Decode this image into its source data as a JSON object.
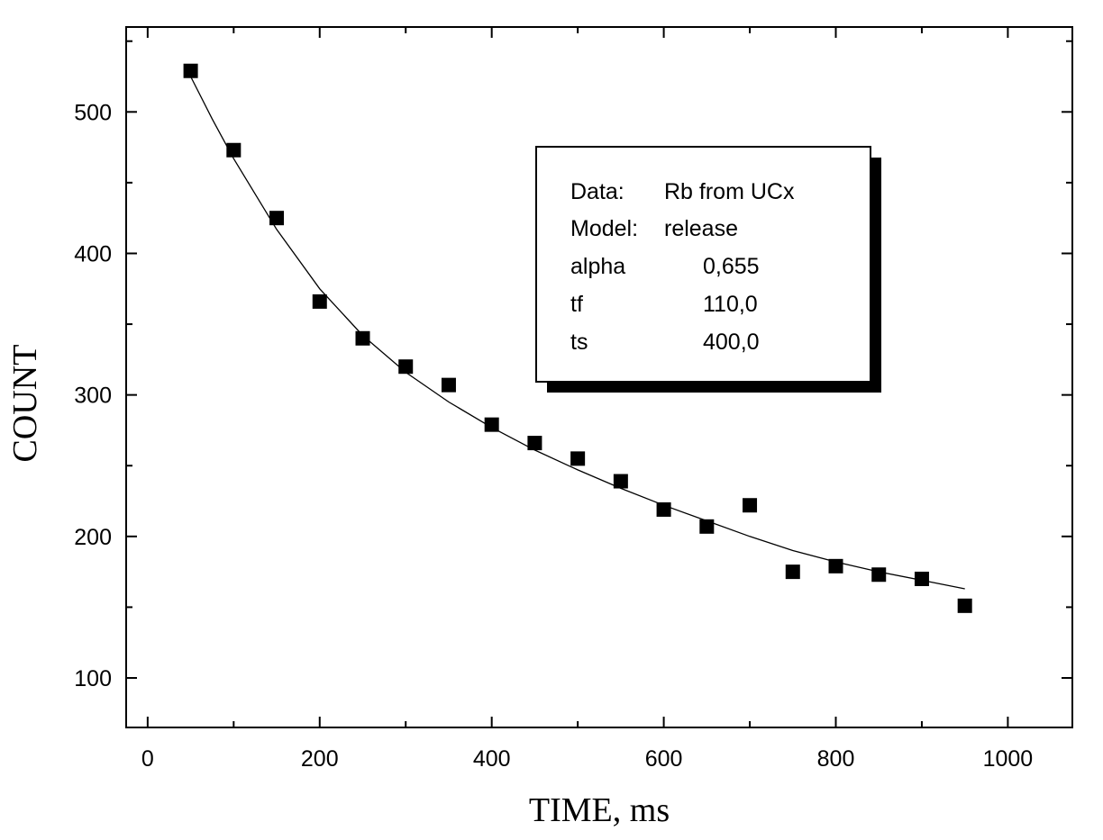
{
  "chart_data": {
    "type": "scatter",
    "xlabel": "TIME, ms",
    "ylabel": "COUNT",
    "xlim": [
      -25,
      1075
    ],
    "ylim": [
      65,
      560
    ],
    "x_ticks": [
      0,
      200,
      400,
      600,
      800,
      1000
    ],
    "y_ticks": [
      100,
      200,
      300,
      400,
      500
    ],
    "grid": false,
    "series": [
      {
        "type": "scatter",
        "marker": "square",
        "color": "#000000",
        "x": [
          50,
          100,
          150,
          200,
          250,
          300,
          350,
          400,
          450,
          500,
          550,
          600,
          650,
          700,
          750,
          800,
          850,
          900,
          950
        ],
        "y": [
          529,
          473,
          425,
          366,
          340,
          320,
          307,
          279,
          266,
          255,
          239,
          219,
          207,
          222,
          175,
          179,
          173,
          170,
          151
        ]
      },
      {
        "type": "line",
        "color": "#000000",
        "x": [
          50,
          75,
          100,
          150,
          200,
          250,
          300,
          350,
          400,
          450,
          500,
          550,
          600,
          650,
          700,
          750,
          800,
          850,
          900,
          950
        ],
        "y": [
          525,
          495,
          467,
          417,
          375,
          342,
          316,
          295,
          277,
          261,
          247,
          234,
          222,
          211,
          200,
          190,
          182,
          175,
          169,
          163
        ]
      }
    ],
    "annotation": {
      "position": "upper-center-right",
      "rows": [
        {
          "key": "Data:",
          "value": "Rb from UCx"
        },
        {
          "key": "Model:",
          "value": "release"
        },
        {
          "key": "alpha",
          "value": "0,655"
        },
        {
          "key": "tf",
          "value": "110,0"
        },
        {
          "key": "ts",
          "value": "400,0"
        }
      ]
    }
  }
}
